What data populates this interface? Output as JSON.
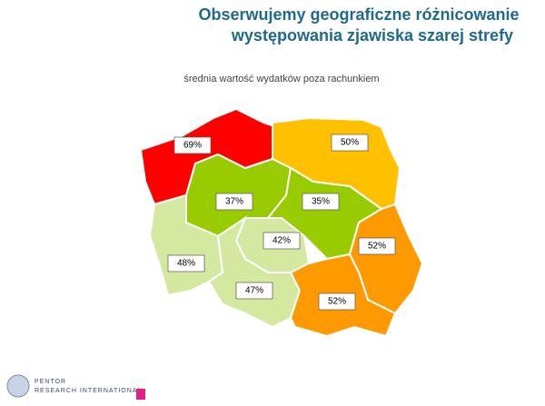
{
  "title": [
    "Obserwujemy geograficzne różnicowanie",
    "występowania  zjawiska szarej strefy"
  ],
  "subtitle": "średnia wartość wydatków poza rachunkiem",
  "regions": [
    {
      "label": "69%",
      "value": 69,
      "color": "#ff0000"
    },
    {
      "label": "50%",
      "value": 50,
      "color": "#ffc000"
    },
    {
      "label": "37%",
      "value": 37,
      "color": "#99cc00"
    },
    {
      "label": "35%",
      "value": 35,
      "color": "#99cc00"
    },
    {
      "label": "52%",
      "value": 52,
      "color": "#ff9900"
    },
    {
      "label": "42%",
      "value": 42,
      "color": "#d4e8a0"
    },
    {
      "label": "48%",
      "value": 48,
      "color": "#d4e8a0"
    },
    {
      "label": "47%",
      "value": 47,
      "color": "#d4e8a0"
    },
    {
      "label": "52%",
      "value": 52,
      "color": "#ff9900"
    }
  ],
  "logo": [
    "PENTOR",
    "RESEARCH INTERNATIONAL"
  ]
}
